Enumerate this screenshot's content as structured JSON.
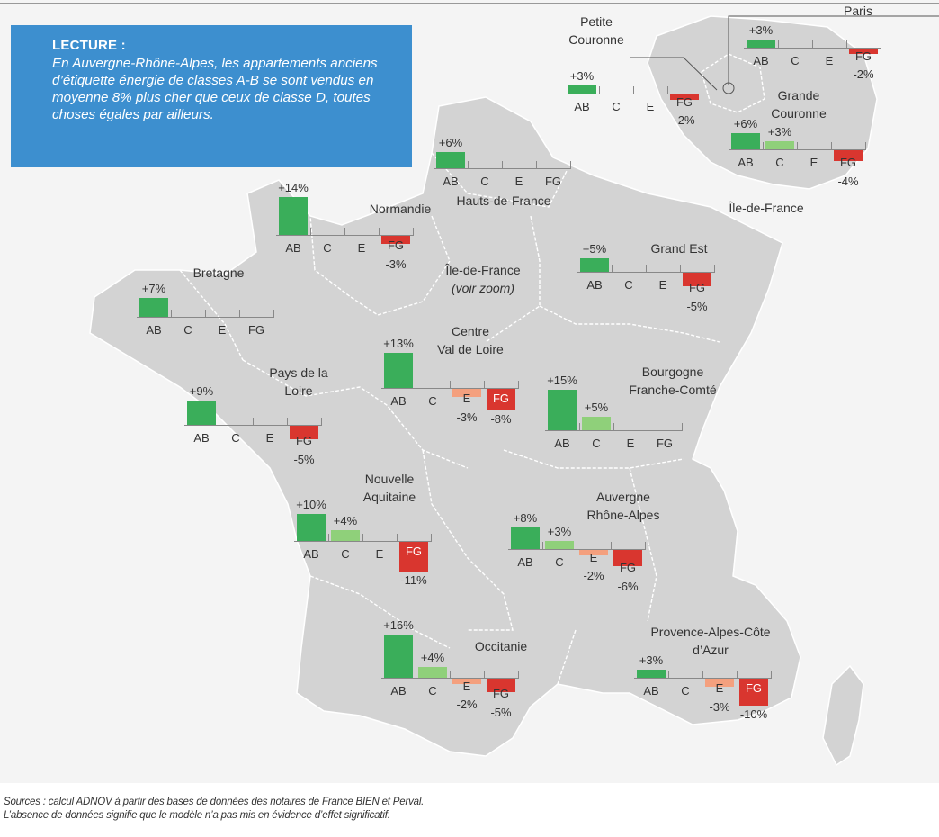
{
  "lecture": {
    "title": "LECTURE :",
    "body": "En Auvergne-Rhône-Alpes, les appartements anciens d’étiquette énergie de classes A-B se sont vendus en moyenne 8% plus cher que ceux de classe D, toutes choses égales par ailleurs."
  },
  "colors": {
    "ab": "#3aae5a",
    "c": "#8fd07a",
    "e": "#f4a07e",
    "fg": "#d9362f",
    "lecture_bg": "#3d8fcf"
  },
  "categories": [
    "AB",
    "C",
    "E",
    "FG"
  ],
  "regions": [
    {
      "id": "ile-de-france-zoom",
      "name_lines": [
        "Île-de-France"
      ],
      "zoom_note": "(voir zoom)"
    },
    {
      "id": "hauts-de-france",
      "name_lines": [
        "Hauts-de-France"
      ],
      "values": {
        "AB": 6
      }
    },
    {
      "id": "normandie",
      "name_lines": [
        "Normandie"
      ],
      "values": {
        "AB": 14,
        "FG": -3
      }
    },
    {
      "id": "bretagne",
      "name_lines": [
        "Bretagne"
      ],
      "values": {
        "AB": 7
      }
    },
    {
      "id": "grand-est",
      "name_lines": [
        "Grand Est"
      ],
      "values": {
        "AB": 5,
        "FG": -5
      }
    },
    {
      "id": "centre-val-de-loire",
      "name_lines": [
        "Centre",
        "Val de Loire"
      ],
      "values": {
        "AB": 13,
        "E": -3,
        "FG": -8
      }
    },
    {
      "id": "pays-de-la-loire",
      "name_lines": [
        "Pays de la",
        "Loire"
      ],
      "values": {
        "AB": 9,
        "FG": -5
      }
    },
    {
      "id": "bourgogne-franche-comte",
      "name_lines": [
        "Bourgogne",
        "Franche-Comté"
      ],
      "values": {
        "AB": 15,
        "C": 5
      }
    },
    {
      "id": "nouvelle-aquitaine",
      "name_lines": [
        "Nouvelle",
        "Aquitaine"
      ],
      "values": {
        "AB": 10,
        "C": 4,
        "FG": -11
      }
    },
    {
      "id": "auvergne-rhone-alpes",
      "name_lines": [
        "Auvergne",
        "Rhône-Alpes"
      ],
      "values": {
        "AB": 8,
        "C": 3,
        "E": -2,
        "FG": -6
      }
    },
    {
      "id": "occitanie",
      "name_lines": [
        "Occitanie"
      ],
      "values": {
        "AB": 16,
        "C": 4,
        "E": -2,
        "FG": -5
      }
    },
    {
      "id": "paca",
      "name_lines": [
        "Provence-Alpes-Côte",
        "d’Azur"
      ],
      "values": {
        "AB": 3,
        "E": -3,
        "FG": -10
      }
    },
    {
      "id": "paris",
      "name_lines": [
        "Paris"
      ],
      "values": {
        "AB": 3,
        "FG": -2
      }
    },
    {
      "id": "petite-couronne",
      "name_lines": [
        "Petite",
        "Couronne"
      ],
      "values": {
        "AB": 3,
        "FG": -2
      }
    },
    {
      "id": "grande-couronne",
      "name_lines": [
        "Grande",
        "Couronne"
      ],
      "values": {
        "AB": 6,
        "C": 3,
        "FG": -4
      }
    },
    {
      "id": "ile-de-france-inset",
      "name_lines": [
        "Île-de-France"
      ]
    }
  ],
  "source": {
    "line1": "Sources : calcul ADNOV à partir des bases de données des notaires de France BIEN et Perval.",
    "line2": "L’absence de données signifie que le modèle n’a pas mis en évidence d’effet significatif."
  }
}
